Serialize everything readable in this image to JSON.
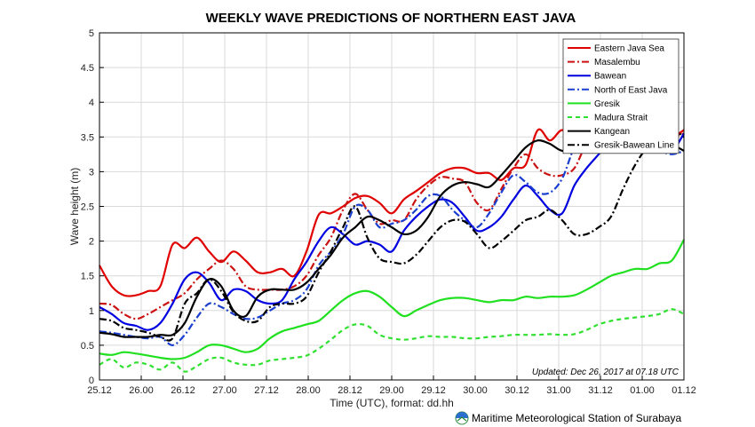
{
  "chart_data": {
    "type": "line",
    "title": "WEEKLY WAVE PREDICTIONS OF NORTHERN EAST JAVA",
    "xlabel": "Time (UTC), format: dd.hh",
    "ylabel": "Wave height (m)",
    "ylim": [
      0,
      5
    ],
    "xlim": [
      0,
      12
    ],
    "x_tick_labels": [
      "25.12",
      "26.00",
      "26.12",
      "27.00",
      "27.12",
      "28.00",
      "28.12",
      "29.00",
      "29.12",
      "30.00",
      "30.12",
      "31.00",
      "31.12",
      "01.00",
      "01.12"
    ],
    "y_ticks": [
      0,
      0.5,
      1,
      1.5,
      2,
      2.5,
      3,
      3.5,
      4,
      4.5,
      5
    ],
    "y_tick_labels": [
      "0",
      "0.5",
      "1",
      "1.5",
      "2",
      "2.5",
      "3",
      "3.5",
      "4",
      "4.5",
      "5"
    ],
    "grid": true,
    "legend_position": "top-right",
    "note": "Updated: Dec 26, 2017 at 07.18 UTC",
    "credit": "Maritime Meteorological Station of Surabaya",
    "x": [
      0,
      0.25,
      0.5,
      0.75,
      1,
      1.25,
      1.5,
      1.75,
      2,
      2.25,
      2.5,
      2.75,
      3,
      3.25,
      3.5,
      3.75,
      4,
      4.25,
      4.5,
      4.75,
      5,
      5.25,
      5.5,
      5.75,
      6,
      6.25,
      6.5,
      6.75,
      7,
      7.25,
      7.5,
      7.75,
      8,
      8.25,
      8.5,
      8.75,
      9,
      9.25,
      9.5,
      9.75,
      10,
      10.25,
      10.5,
      10.75,
      11,
      11.25,
      11.5,
      11.75,
      12
    ],
    "series": [
      {
        "name": "Eastern Java Sea",
        "color": "#e00000",
        "dash": "solid",
        "values": [
          1.65,
          1.35,
          1.22,
          1.22,
          1.28,
          1.35,
          1.95,
          1.9,
          2.05,
          1.85,
          1.7,
          1.85,
          1.72,
          1.55,
          1.55,
          1.6,
          1.5,
          1.85,
          2.38,
          2.4,
          2.5,
          2.62,
          2.65,
          2.55,
          2.4,
          2.6,
          2.72,
          2.85,
          2.98,
          3.05,
          3.05,
          2.98,
          2.98,
          2.88,
          3.05,
          3.1,
          3.6,
          3.45,
          3.6,
          3.45,
          3.35,
          3.4,
          3.5,
          3.4,
          3.55,
          3.45,
          3.55,
          3.5,
          3.6
        ]
      },
      {
        "name": "Masalembu",
        "color": "#cc1111",
        "dash": "dashdot",
        "values": [
          1.1,
          1.08,
          0.95,
          0.88,
          0.95,
          1.05,
          1.15,
          1.25,
          1.45,
          1.6,
          1.72,
          1.6,
          1.35,
          1.3,
          1.3,
          1.3,
          1.35,
          1.5,
          1.8,
          2.05,
          2.45,
          2.68,
          2.45,
          2.25,
          2.3,
          2.3,
          2.6,
          2.8,
          2.92,
          2.9,
          2.85,
          2.55,
          2.45,
          2.75,
          3.05,
          3.25,
          3.05,
          2.95,
          2.95,
          3.05,
          3.4,
          3.5,
          3.55,
          3.4,
          3.35,
          3.4,
          3.5,
          3.5,
          3.55
        ]
      },
      {
        "name": "Bawean",
        "color": "#0000e0",
        "dash": "solid",
        "values": [
          1.05,
          0.95,
          0.82,
          0.78,
          0.72,
          0.82,
          1.1,
          1.45,
          1.55,
          1.4,
          1.15,
          1.3,
          1.28,
          1.15,
          1.1,
          1.15,
          1.45,
          1.7,
          2.0,
          2.2,
          2.1,
          1.95,
          2.0,
          1.95,
          1.85,
          2.15,
          2.35,
          2.5,
          2.6,
          2.55,
          2.35,
          2.15,
          2.2,
          2.35,
          2.6,
          2.8,
          2.65,
          2.45,
          2.4,
          2.8,
          3.05,
          3.25,
          3.45,
          3.5,
          3.5,
          3.45,
          3.4,
          3.3,
          3.55
        ]
      },
      {
        "name": "North of East Java",
        "color": "#1a3fd0",
        "dash": "dashdot",
        "values": [
          0.7,
          0.68,
          0.65,
          0.62,
          0.6,
          0.62,
          0.5,
          0.65,
          0.9,
          1.1,
          1.05,
          0.95,
          0.88,
          0.9,
          1.0,
          1.1,
          1.15,
          1.3,
          1.65,
          1.85,
          2.1,
          2.5,
          2.45,
          2.2,
          2.25,
          2.3,
          2.45,
          2.65,
          2.65,
          2.45,
          2.3,
          2.2,
          2.4,
          2.7,
          2.95,
          2.85,
          2.7,
          2.7,
          2.9,
          3.35,
          3.55,
          3.55,
          3.55,
          3.45,
          3.5,
          3.35,
          3.3,
          3.25,
          3.3
        ]
      },
      {
        "name": "Gresik",
        "color": "#20e020",
        "dash": "solid",
        "values": [
          0.38,
          0.36,
          0.4,
          0.38,
          0.35,
          0.32,
          0.3,
          0.32,
          0.4,
          0.5,
          0.5,
          0.45,
          0.4,
          0.45,
          0.6,
          0.7,
          0.75,
          0.8,
          0.85,
          1.0,
          1.15,
          1.25,
          1.28,
          1.2,
          1.05,
          0.92,
          1.0,
          1.08,
          1.15,
          1.18,
          1.18,
          1.15,
          1.12,
          1.15,
          1.15,
          1.2,
          1.18,
          1.2,
          1.2,
          1.22,
          1.3,
          1.4,
          1.5,
          1.55,
          1.6,
          1.6,
          1.68,
          1.72,
          2.02
        ]
      },
      {
        "name": "Madura Strait",
        "color": "#30e030",
        "dash": "dashed",
        "values": [
          0.22,
          0.3,
          0.18,
          0.25,
          0.22,
          0.15,
          0.25,
          0.12,
          0.2,
          0.3,
          0.32,
          0.25,
          0.22,
          0.22,
          0.28,
          0.3,
          0.32,
          0.35,
          0.45,
          0.58,
          0.72,
          0.8,
          0.78,
          0.65,
          0.6,
          0.58,
          0.6,
          0.63,
          0.62,
          0.62,
          0.6,
          0.6,
          0.62,
          0.63,
          0.65,
          0.65,
          0.65,
          0.66,
          0.65,
          0.66,
          0.72,
          0.8,
          0.85,
          0.88,
          0.9,
          0.92,
          0.95,
          1.02,
          0.95
        ]
      },
      {
        "name": "Kangean",
        "color": "#000000",
        "dash": "solid",
        "values": [
          0.68,
          0.66,
          0.62,
          0.62,
          0.62,
          0.65,
          0.65,
          0.82,
          1.2,
          1.45,
          1.35,
          1.0,
          0.92,
          1.2,
          1.3,
          1.3,
          1.3,
          1.4,
          1.6,
          1.8,
          2.05,
          2.2,
          2.35,
          2.3,
          2.2,
          2.1,
          2.15,
          2.35,
          2.65,
          2.8,
          2.85,
          2.82,
          2.78,
          2.95,
          3.15,
          3.35,
          3.45,
          3.4,
          3.3,
          3.35,
          3.5,
          3.55,
          3.5,
          3.45,
          3.4,
          3.45,
          3.5,
          3.4,
          3.3
        ]
      },
      {
        "name": "Gresik-Bawean Line",
        "color": "#000000",
        "dash": "dashdot",
        "values": [
          0.88,
          0.85,
          0.75,
          0.72,
          0.68,
          0.62,
          0.6,
          1.1,
          1.25,
          1.45,
          1.28,
          0.98,
          0.85,
          0.85,
          1.05,
          1.1,
          1.1,
          1.2,
          1.55,
          1.85,
          2.2,
          2.5,
          2.05,
          1.75,
          1.7,
          1.68,
          1.8,
          2.0,
          2.2,
          2.3,
          2.28,
          2.1,
          1.9,
          2.0,
          2.15,
          2.3,
          2.35,
          2.45,
          2.3,
          2.1,
          2.1,
          2.2,
          2.35,
          2.75,
          3.1,
          3.35,
          3.45,
          3.6,
          3.5
        ]
      }
    ]
  }
}
